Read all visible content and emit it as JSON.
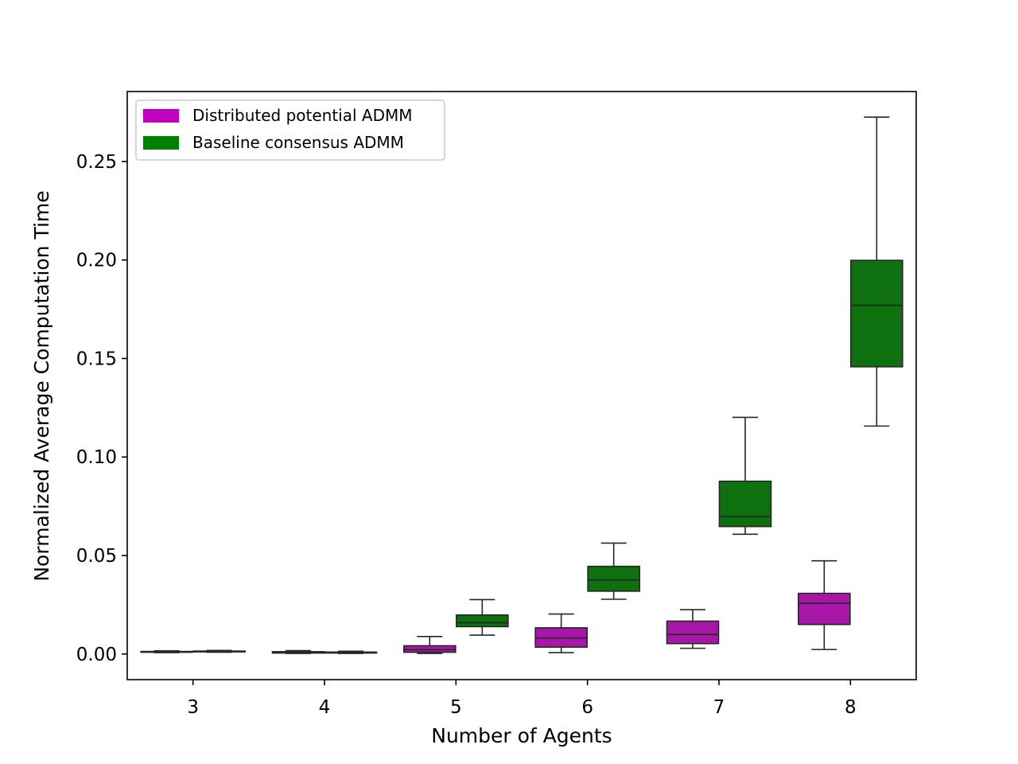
{
  "chart_data": {
    "type": "box",
    "xlabel": "Number of Agents",
    "ylabel": "Normalized Average Computation Time",
    "ylim": [
      -0.013,
      0.2855
    ],
    "yticks": [
      "0.00",
      "0.05",
      "0.10",
      "0.15",
      "0.20",
      "0.25"
    ],
    "ytick_values": [
      0.0,
      0.05,
      0.1,
      0.15,
      0.2,
      0.25
    ],
    "categories": [
      "3",
      "4",
      "5",
      "6",
      "7",
      "8"
    ],
    "grid": false,
    "legend_position": "top-left",
    "series": [
      {
        "name": "Distributed potential ADMM",
        "color": "#a816a8",
        "legend_color": "#bf00bf",
        "boxes": [
          {
            "whisker_low": 0.0007,
            "q1": 0.0009,
            "median": 0.0011,
            "q3": 0.0013,
            "whisker_high": 0.0016
          },
          {
            "whisker_low": 0.0003,
            "q1": 0.0005,
            "median": 0.0009,
            "q3": 0.0012,
            "whisker_high": 0.0017
          },
          {
            "whisker_low": 0.0003,
            "q1": 0.0009,
            "median": 0.0022,
            "q3": 0.0042,
            "whisker_high": 0.0089
          },
          {
            "whisker_low": 0.0007,
            "q1": 0.0035,
            "median": 0.0081,
            "q3": 0.0133,
            "whisker_high": 0.0203
          },
          {
            "whisker_low": 0.0029,
            "q1": 0.0053,
            "median": 0.0099,
            "q3": 0.0167,
            "whisker_high": 0.0225
          },
          {
            "whisker_low": 0.0023,
            "q1": 0.015,
            "median": 0.0258,
            "q3": 0.0308,
            "whisker_high": 0.0473
          }
        ]
      },
      {
        "name": "Baseline consensus ADMM",
        "color": "#0e700e",
        "legend_color": "#008000",
        "boxes": [
          {
            "whisker_low": 0.0009,
            "q1": 0.0011,
            "median": 0.0013,
            "q3": 0.0015,
            "whisker_high": 0.0018
          },
          {
            "whisker_low": 0.0003,
            "q1": 0.0005,
            "median": 0.0007,
            "q3": 0.001,
            "whisker_high": 0.0014
          },
          {
            "whisker_low": 0.0096,
            "q1": 0.0139,
            "median": 0.0159,
            "q3": 0.0198,
            "whisker_high": 0.0276
          },
          {
            "whisker_low": 0.0278,
            "q1": 0.0319,
            "median": 0.0376,
            "q3": 0.0445,
            "whisker_high": 0.0563
          },
          {
            "whisker_low": 0.0608,
            "q1": 0.0647,
            "median": 0.0698,
            "q3": 0.0877,
            "whisker_high": 0.1201
          },
          {
            "whisker_low": 0.1157,
            "q1": 0.1458,
            "median": 0.177,
            "q3": 0.1998,
            "whisker_high": 0.2725
          }
        ]
      }
    ]
  }
}
